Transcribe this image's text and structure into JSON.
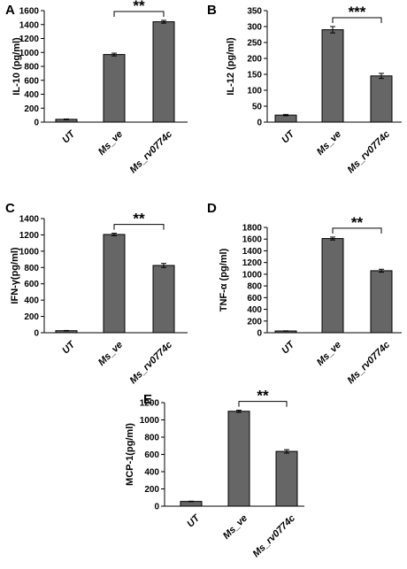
{
  "chart_data": [
    {
      "panel": "A",
      "type": "bar",
      "ylabel": "IL-10 (pg/ml)",
      "ylim": [
        0,
        1600
      ],
      "yticks": [
        "0",
        "200",
        "400",
        "600",
        "800",
        "1000",
        "1200",
        "1400",
        "1600"
      ],
      "categories": [
        "UT",
        "Ms_ve",
        "Ms_rv0774c"
      ],
      "values": [
        40,
        970,
        1440
      ],
      "errors": [
        5,
        20,
        20
      ],
      "significance": {
        "from": 1,
        "to": 2,
        "label": "**"
      },
      "bar_color": "#666666"
    },
    {
      "panel": "B",
      "type": "bar",
      "ylabel": "IL-12 (pg/ml)",
      "ylim": [
        0,
        350
      ],
      "yticks": [
        "0",
        "50",
        "100",
        "150",
        "200",
        "250",
        "300",
        "350"
      ],
      "categories": [
        "UT",
        "Ms_ve",
        "Ms_rv0774c"
      ],
      "values": [
        22,
        290,
        145
      ],
      "errors": [
        2,
        10,
        8
      ],
      "significance": {
        "from": 1,
        "to": 2,
        "label": "***"
      },
      "bar_color": "#666666"
    },
    {
      "panel": "C",
      "type": "bar",
      "ylabel": "IFN-γ(pg/ml)",
      "ylim": [
        0,
        1400
      ],
      "yticks": [
        "0",
        "200",
        "400",
        "600",
        "800",
        "1000",
        "1200",
        "1400"
      ],
      "categories": [
        "UT",
        "Ms_ve",
        "Ms_rv0774c"
      ],
      "values": [
        25,
        1205,
        825
      ],
      "errors": [
        3,
        15,
        25
      ],
      "significance": {
        "from": 1,
        "to": 2,
        "label": "**"
      },
      "bar_color": "#666666"
    },
    {
      "panel": "D",
      "type": "bar",
      "ylabel": "TNF-α (pg/ml)",
      "ylim": [
        0,
        1800
      ],
      "yticks": [
        "0",
        "200",
        "400",
        "600",
        "800",
        "1000",
        "1200",
        "1400",
        "1600",
        "1800"
      ],
      "categories": [
        "UT",
        "Ms_ve",
        "Ms_rv0774c"
      ],
      "values": [
        30,
        1610,
        1060
      ],
      "errors": [
        3,
        25,
        25
      ],
      "significance": {
        "from": 1,
        "to": 2,
        "label": "**"
      },
      "bar_color": "#666666"
    },
    {
      "panel": "E",
      "type": "bar",
      "ylabel": "MCP-1(pg/ml)",
      "ylim": [
        0,
        1200
      ],
      "yticks": [
        "0",
        "200",
        "400",
        "600",
        "800",
        "1000",
        "1200"
      ],
      "categories": [
        "UT",
        "Ms_ve",
        "Ms_rv0774c"
      ],
      "values": [
        55,
        1100,
        635
      ],
      "errors": [
        3,
        12,
        20
      ],
      "significance": {
        "from": 1,
        "to": 2,
        "label": "**"
      },
      "bar_color": "#666666"
    }
  ]
}
